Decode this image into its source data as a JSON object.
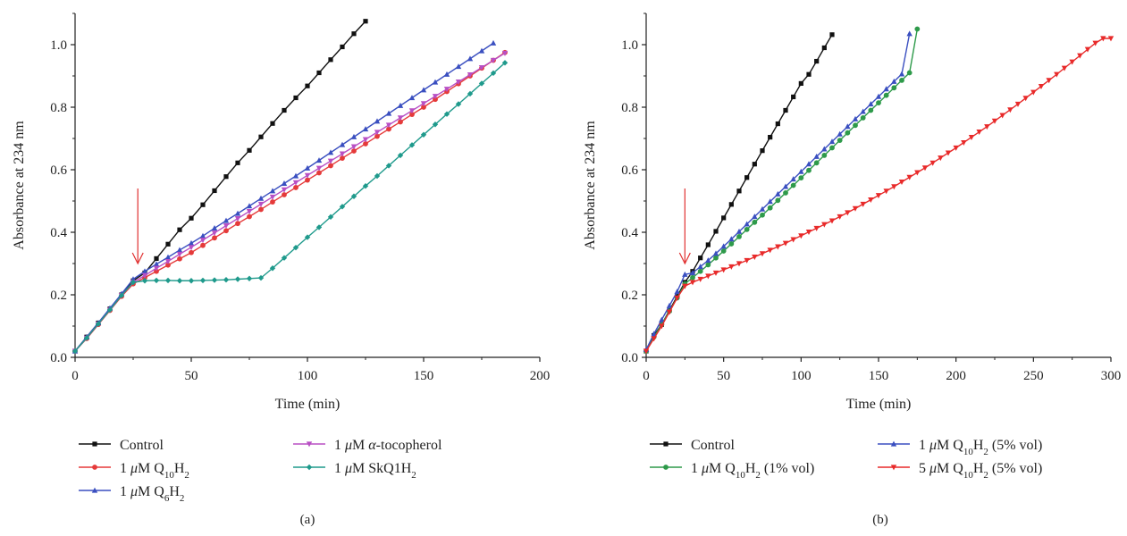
{
  "panels_label": [
    "(a)",
    "(b)"
  ],
  "chart_data": [
    {
      "type": "line",
      "panel_label": "(a)",
      "xlabel": "Time (min)",
      "ylabel": "Absorbance at 234 nm",
      "xlim": [
        0,
        200
      ],
      "ylim": [
        0,
        1.1
      ],
      "xticks": [
        "0",
        "50",
        "100",
        "150",
        "200"
      ],
      "yticks": [
        "0.0",
        "0.2",
        "0.4",
        "0.6",
        "0.8",
        "1.0"
      ],
      "xtick_values": [
        0,
        50,
        100,
        150,
        200
      ],
      "ytick_values": [
        0,
        0.2,
        0.4,
        0.6,
        0.8,
        1.0
      ],
      "arrow": {
        "x": 27,
        "y_from": 0.54,
        "y_to": 0.3,
        "color": "#e03030"
      },
      "series": [
        {
          "name_parts": [
            "Control"
          ],
          "color": "#111111",
          "marker": "square",
          "x": [
            0,
            5,
            10,
            15,
            20,
            25,
            30,
            35,
            40,
            45,
            50,
            55,
            60,
            65,
            70,
            75,
            80,
            85,
            90,
            95,
            100,
            105,
            110,
            115,
            120,
            125
          ],
          "y": [
            0.02,
            0.065,
            0.11,
            0.155,
            0.2,
            0.245,
            0.27,
            0.316,
            0.362,
            0.408,
            0.445,
            0.488,
            0.533,
            0.578,
            0.622,
            0.662,
            0.705,
            0.748,
            0.79,
            0.83,
            0.868,
            0.91,
            0.952,
            0.993,
            1.035,
            1.075
          ]
        },
        {
          "name_parts": [
            "1 ",
            "μ",
            "M Q",
            "10",
            "H",
            "2"
          ],
          "color": "#e53a3a",
          "marker": "circle",
          "x": [
            0,
            5,
            10,
            15,
            20,
            25,
            30,
            35,
            40,
            45,
            50,
            55,
            60,
            65,
            70,
            75,
            80,
            85,
            90,
            95,
            100,
            105,
            110,
            115,
            120,
            125,
            130,
            135,
            140,
            145,
            150,
            155,
            160,
            165,
            170,
            175,
            180,
            185
          ],
          "y": [
            0.02,
            0.06,
            0.105,
            0.15,
            0.195,
            0.235,
            0.255,
            0.275,
            0.295,
            0.315,
            0.335,
            0.358,
            0.382,
            0.405,
            0.428,
            0.45,
            0.473,
            0.497,
            0.52,
            0.543,
            0.567,
            0.59,
            0.613,
            0.637,
            0.66,
            0.683,
            0.707,
            0.73,
            0.753,
            0.777,
            0.8,
            0.825,
            0.85,
            0.875,
            0.9,
            0.925,
            0.95,
            0.975
          ]
        },
        {
          "name_parts": [
            "1 ",
            "μ",
            "M Q",
            "6",
            "H",
            "2"
          ],
          "color": "#3a4fc0",
          "marker": "triangle-up",
          "x": [
            0,
            5,
            10,
            15,
            20,
            25,
            30,
            35,
            40,
            45,
            50,
            55,
            60,
            65,
            70,
            75,
            80,
            85,
            90,
            95,
            100,
            105,
            110,
            115,
            120,
            125,
            130,
            135,
            140,
            145,
            150,
            155,
            160,
            165,
            170,
            175,
            180
          ],
          "y": [
            0.02,
            0.065,
            0.11,
            0.157,
            0.203,
            0.25,
            0.275,
            0.298,
            0.32,
            0.343,
            0.365,
            0.388,
            0.413,
            0.437,
            0.46,
            0.484,
            0.508,
            0.532,
            0.556,
            0.58,
            0.605,
            0.63,
            0.655,
            0.68,
            0.705,
            0.73,
            0.755,
            0.78,
            0.805,
            0.83,
            0.855,
            0.88,
            0.905,
            0.93,
            0.955,
            0.98,
            1.005
          ]
        },
        {
          "name_parts": [
            "1 ",
            "μ",
            "M ",
            "α",
            "-tocopherol"
          ],
          "color": "#b84fc4",
          "marker": "triangle-down",
          "x": [
            0,
            5,
            10,
            15,
            20,
            25,
            30,
            35,
            40,
            45,
            50,
            55,
            60,
            65,
            70,
            75,
            80,
            85,
            90,
            95,
            100,
            105,
            110,
            115,
            120,
            125,
            130,
            135,
            140,
            145,
            150,
            155,
            160,
            165,
            170,
            175,
            180,
            185
          ],
          "y": [
            0.02,
            0.062,
            0.107,
            0.152,
            0.198,
            0.24,
            0.262,
            0.285,
            0.307,
            0.33,
            0.352,
            0.375,
            0.398,
            0.421,
            0.444,
            0.467,
            0.49,
            0.513,
            0.536,
            0.559,
            0.582,
            0.605,
            0.628,
            0.651,
            0.674,
            0.697,
            0.72,
            0.743,
            0.766,
            0.789,
            0.812,
            0.835,
            0.858,
            0.881,
            0.904,
            0.927,
            0.95,
            0.973
          ]
        },
        {
          "name_parts": [
            "1 ",
            "μ",
            "M SkQ1H",
            "2"
          ],
          "color": "#1f9a8c",
          "marker": "diamond",
          "x": [
            0,
            5,
            10,
            15,
            20,
            25,
            30,
            35,
            40,
            45,
            50,
            55,
            60,
            65,
            70,
            75,
            80,
            85,
            90,
            95,
            100,
            105,
            110,
            115,
            120,
            125,
            130,
            135,
            140,
            145,
            150,
            155,
            160,
            165,
            170,
            175,
            180,
            185
          ],
          "y": [
            0.02,
            0.062,
            0.107,
            0.152,
            0.198,
            0.24,
            0.245,
            0.246,
            0.246,
            0.245,
            0.245,
            0.246,
            0.247,
            0.248,
            0.25,
            0.252,
            0.254,
            0.285,
            0.318,
            0.351,
            0.384,
            0.416,
            0.449,
            0.482,
            0.515,
            0.548,
            0.58,
            0.613,
            0.646,
            0.679,
            0.712,
            0.745,
            0.778,
            0.81,
            0.843,
            0.876,
            0.909,
            0.942
          ]
        }
      ]
    },
    {
      "type": "line",
      "panel_label": "(b)",
      "xlabel": "Time (min)",
      "ylabel": "Absorbance at 234 nm",
      "xlim": [
        0,
        300
      ],
      "ylim": [
        0,
        1.1
      ],
      "xticks": [
        "0",
        "50",
        "100",
        "150",
        "200",
        "250",
        "300"
      ],
      "yticks": [
        "0.0",
        "0.2",
        "0.4",
        "0.6",
        "0.8",
        "1.0"
      ],
      "xtick_values": [
        0,
        50,
        100,
        150,
        200,
        250,
        300
      ],
      "ytick_values": [
        0,
        0.2,
        0.4,
        0.6,
        0.8,
        1.0
      ],
      "arrow": {
        "x": 25,
        "y_from": 0.54,
        "y_to": 0.3,
        "color": "#e03030"
      },
      "series": [
        {
          "name_parts": [
            "Control"
          ],
          "color": "#111111",
          "marker": "square",
          "x": [
            0,
            5,
            10,
            15,
            20,
            25,
            30,
            35,
            40,
            45,
            50,
            55,
            60,
            65,
            70,
            75,
            80,
            85,
            90,
            95,
            100,
            105,
            110,
            115,
            120
          ],
          "y": [
            0.02,
            0.07,
            0.105,
            0.15,
            0.195,
            0.24,
            0.275,
            0.318,
            0.36,
            0.403,
            0.446,
            0.489,
            0.532,
            0.575,
            0.618,
            0.661,
            0.704,
            0.747,
            0.79,
            0.833,
            0.876,
            0.905,
            0.947,
            0.99,
            1.032
          ]
        },
        {
          "name_parts": [
            "1 ",
            "μ",
            "M Q",
            "10",
            "H",
            "2",
            " (1% vol)"
          ],
          "color": "#2e9a4a",
          "marker": "circle",
          "x": [
            0,
            5,
            10,
            15,
            20,
            25,
            30,
            35,
            40,
            45,
            50,
            55,
            60,
            65,
            70,
            75,
            80,
            85,
            90,
            95,
            100,
            105,
            110,
            115,
            120,
            125,
            130,
            135,
            140,
            145,
            150,
            155,
            160,
            165,
            170,
            175
          ],
          "y": [
            0.02,
            0.065,
            0.105,
            0.148,
            0.19,
            0.235,
            0.255,
            0.275,
            0.296,
            0.318,
            0.34,
            0.363,
            0.386,
            0.409,
            0.432,
            0.455,
            0.478,
            0.502,
            0.526,
            0.55,
            0.574,
            0.598,
            0.622,
            0.646,
            0.67,
            0.694,
            0.718,
            0.742,
            0.766,
            0.79,
            0.814,
            0.838,
            0.862,
            0.886,
            0.91,
            1.05
          ]
        },
        {
          "name_parts": [
            "1 ",
            "μ",
            "M Q",
            "10",
            "H",
            "2",
            " (5% vol)"
          ],
          "color": "#3a4fc0",
          "marker": "triangle-up",
          "x": [
            0,
            5,
            10,
            15,
            20,
            25,
            30,
            35,
            40,
            45,
            50,
            55,
            60,
            65,
            70,
            75,
            80,
            85,
            90,
            95,
            100,
            105,
            110,
            115,
            120,
            125,
            130,
            135,
            140,
            145,
            150,
            155,
            160,
            165,
            170
          ],
          "y": [
            0.025,
            0.075,
            0.12,
            0.165,
            0.21,
            0.265,
            0.27,
            0.29,
            0.31,
            0.332,
            0.355,
            0.378,
            0.402,
            0.426,
            0.45,
            0.474,
            0.498,
            0.522,
            0.546,
            0.57,
            0.594,
            0.618,
            0.642,
            0.666,
            0.69,
            0.714,
            0.738,
            0.762,
            0.786,
            0.81,
            0.834,
            0.858,
            0.882,
            0.906,
            1.035
          ]
        },
        {
          "name_parts": [
            "5 ",
            "μ",
            "M Q",
            "10",
            "H",
            "2",
            " (5% vol)"
          ],
          "color": "#e82a2a",
          "marker": "triangle-down",
          "x": [
            0,
            5,
            10,
            15,
            20,
            25,
            30,
            35,
            40,
            45,
            50,
            55,
            60,
            65,
            70,
            75,
            80,
            85,
            90,
            95,
            100,
            105,
            110,
            115,
            120,
            125,
            130,
            135,
            140,
            145,
            150,
            155,
            160,
            165,
            170,
            175,
            180,
            185,
            190,
            195,
            200,
            205,
            210,
            215,
            220,
            225,
            230,
            235,
            240,
            245,
            250,
            255,
            260,
            265,
            270,
            275,
            280,
            285,
            290,
            295,
            300
          ],
          "y": [
            0.02,
            0.06,
            0.1,
            0.145,
            0.19,
            0.228,
            0.24,
            0.25,
            0.26,
            0.27,
            0.28,
            0.29,
            0.3,
            0.31,
            0.321,
            0.332,
            0.343,
            0.354,
            0.365,
            0.377,
            0.389,
            0.401,
            0.413,
            0.425,
            0.437,
            0.45,
            0.463,
            0.476,
            0.49,
            0.504,
            0.518,
            0.532,
            0.546,
            0.561,
            0.576,
            0.591,
            0.606,
            0.622,
            0.638,
            0.654,
            0.67,
            0.687,
            0.704,
            0.721,
            0.738,
            0.756,
            0.774,
            0.792,
            0.81,
            0.829,
            0.848,
            0.867,
            0.886,
            0.905,
            0.925,
            0.945,
            0.965,
            0.985,
            1.005,
            1.02,
            1.02
          ]
        }
      ]
    }
  ]
}
